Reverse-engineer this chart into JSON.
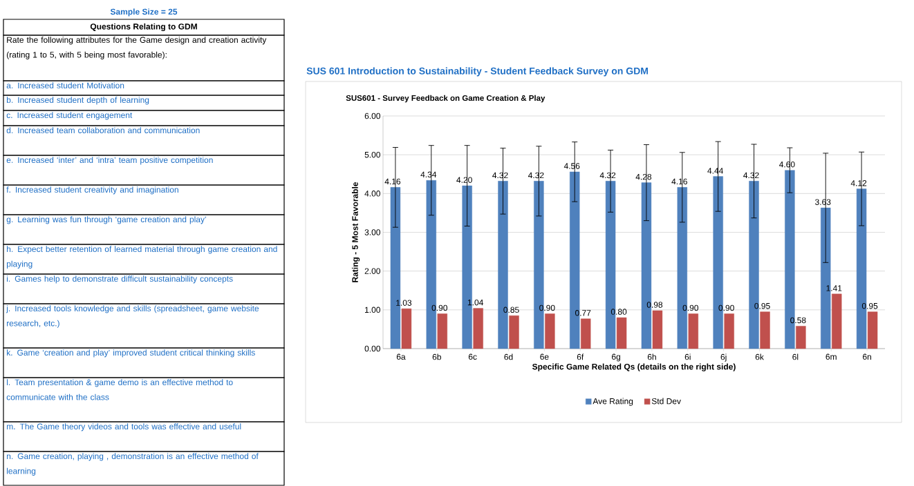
{
  "chart_data": {
    "type": "bar",
    "title": "SUS601 - Survey Feedback on Game Creation & Play",
    "xlabel": "Specific Game Related Qs (details on the right side)",
    "ylabel": "Rating - 5 Most Favorable",
    "categories": [
      "6a",
      "6b",
      "6c",
      "6d",
      "6e",
      "6f",
      "6g",
      "6h",
      "6i",
      "6j",
      "6k",
      "6l",
      "6m",
      "6n"
    ],
    "series": [
      {
        "name": "Ave Rating",
        "color": "#4f81bd",
        "values": [
          4.16,
          4.34,
          4.2,
          4.32,
          4.32,
          4.56,
          4.32,
          4.28,
          4.16,
          4.44,
          4.32,
          4.6,
          3.63,
          4.12
        ],
        "errors": [
          1.03,
          0.9,
          1.04,
          0.85,
          0.9,
          0.77,
          0.8,
          0.98,
          0.9,
          0.9,
          0.95,
          0.58,
          1.41,
          0.95
        ],
        "value_labels": [
          "4.16",
          "4.34",
          "4.20",
          "4.32",
          "4.32",
          "4.56",
          "4.32",
          "4.28",
          "4.16",
          "4.44",
          "4.32",
          "4.60",
          "3.63",
          "4.12"
        ]
      },
      {
        "name": "Std Dev",
        "color": "#c0504d",
        "values": [
          1.03,
          0.9,
          1.04,
          0.85,
          0.9,
          0.77,
          0.8,
          0.98,
          0.9,
          0.9,
          0.95,
          0.58,
          1.41,
          0.95
        ],
        "value_labels": [
          "1.03",
          "0.90",
          "1.04",
          "0.85",
          "0.90",
          "0.77",
          "0.80",
          "0.98",
          "0.90",
          "0.90",
          "0.95",
          "0.58",
          "1.41",
          "0.95"
        ]
      }
    ],
    "ylim": [
      0,
      6
    ],
    "yticks": [
      {
        "value": 0,
        "label": "0.00"
      },
      {
        "value": 1,
        "label": "1.00"
      },
      {
        "value": 2,
        "label": "2.00"
      },
      {
        "value": 3,
        "label": "3.00"
      },
      {
        "value": 4,
        "label": "4.00"
      },
      {
        "value": 5,
        "label": "5.00"
      },
      {
        "value": 6,
        "label": "6.00"
      }
    ],
    "grid": "y",
    "legend": "bottom",
    "annotations": [
      "SUS 601 Introduction to Sustainability - Student Feedback Survey on GDM",
      "Sample Size  = 25",
      "Questions Relating to GDM",
      "Rate the following attributes for the Game design and creation activity (rating 1 to 5, with 5 being most favorable):",
      "a. Increased student Motivation",
      "b. Increased student depth of learning",
      "c. Increased student engagement",
      "d. Increased team collaboration and communication",
      "e. Increased ‘inter’ and ‘intra’ team positive competition",
      "f. Increased student creativity and imagination",
      "g. Learning was fun through ‘game creation and play’",
      "h. Expect better retention of learned material through game creation and playing",
      "i. Games help to demonstrate difficult sustainability concepts",
      "j. Increased tools knowledge and skills (spreadsheet, game website research, etc.)",
      "k. Game ‘creation and play’ improved student critical thinking skills",
      "l. Team presentation & game demo is an effective method to communicate with the class",
      "m. The Game theory videos and tools was effective and useful",
      "n. Game creation, playing , demonstration  is an effective method of learning"
    ]
  }
}
